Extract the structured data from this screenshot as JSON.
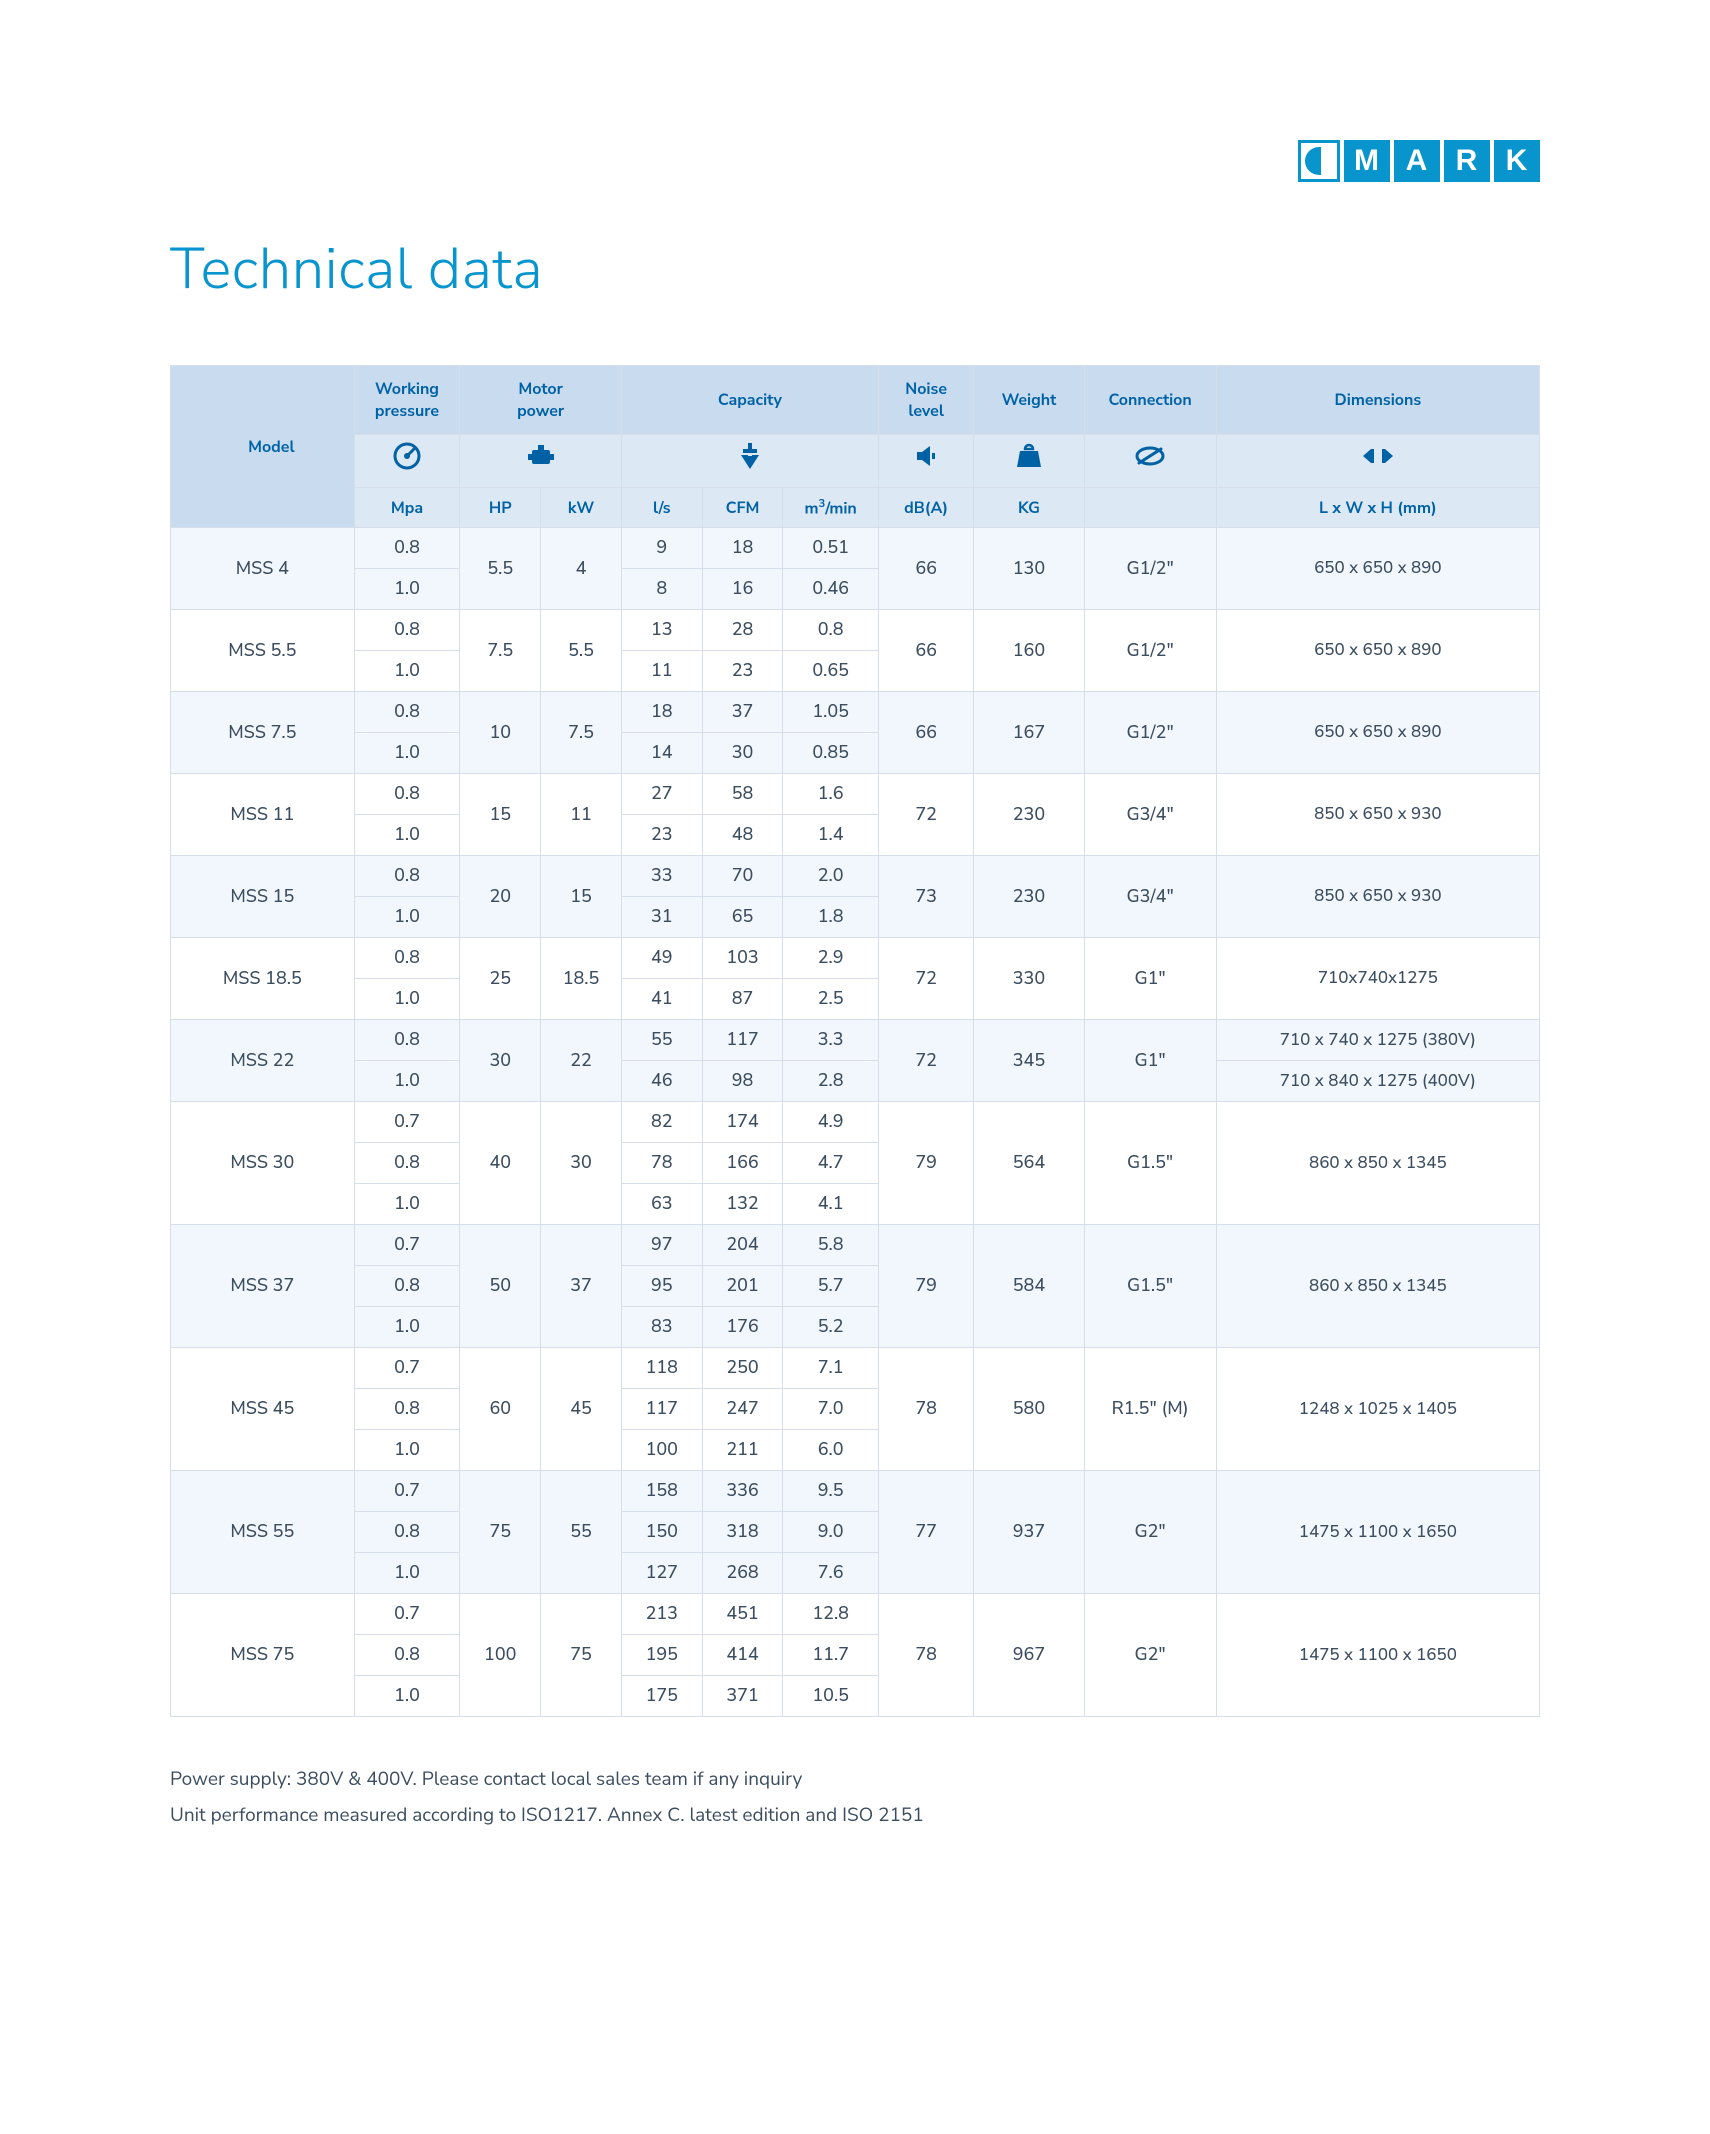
{
  "logo_letters": [
    "M",
    "A",
    "R",
    "K"
  ],
  "title": "Technical data",
  "colgroup": [
    "c-model",
    "c-press",
    "c-hp",
    "c-kw",
    "c-ls",
    "c-cfm",
    "c-m3",
    "c-db",
    "c-kg",
    "c-conn",
    "c-dim"
  ],
  "header_groups": [
    {
      "label": "Model",
      "icon": "",
      "colspan": 1,
      "rowspan_all": true
    },
    {
      "label": "Working pressure",
      "icon": "gauge",
      "colspan": 1
    },
    {
      "label": "Motor power",
      "icon": "engine",
      "colspan": 2
    },
    {
      "label": "Capacity",
      "icon": "flow",
      "colspan": 3
    },
    {
      "label": "Noise level",
      "icon": "noise",
      "colspan": 1
    },
    {
      "label": "Weight",
      "icon": "weight",
      "colspan": 1
    },
    {
      "label": "Connection",
      "icon": "coupling",
      "colspan": 1
    },
    {
      "label": "Dimensions",
      "icon": "dimensions",
      "colspan": 1
    }
  ],
  "unit_row": [
    "Mpa",
    "HP",
    "kW",
    "l/s",
    "CFM",
    "m³/min",
    "dB(A)",
    "KG",
    "",
    "L x W x H (mm)"
  ],
  "models": [
    {
      "name": "MSS 4",
      "hp": "5.5",
      "kw": "4",
      "noise": "66",
      "weight": "130",
      "conn": "G1/2\"",
      "dim": [
        "650 x 650 x 890"
      ],
      "lines": [
        {
          "p": "0.8",
          "ls": "9",
          "cfm": "18",
          "m3": "0.51"
        },
        {
          "p": "1.0",
          "ls": "8",
          "cfm": "16",
          "m3": "0.46"
        }
      ]
    },
    {
      "name": "MSS 5.5",
      "hp": "7.5",
      "kw": "5.5",
      "noise": "66",
      "weight": "160",
      "conn": "G1/2\"",
      "dim": [
        "650 x 650 x 890"
      ],
      "lines": [
        {
          "p": "0.8",
          "ls": "13",
          "cfm": "28",
          "m3": "0.8"
        },
        {
          "p": "1.0",
          "ls": "11",
          "cfm": "23",
          "m3": "0.65"
        }
      ]
    },
    {
      "name": "MSS 7.5",
      "hp": "10",
      "kw": "7.5",
      "noise": "66",
      "weight": "167",
      "conn": "G1/2\"",
      "dim": [
        "650 x 650 x 890"
      ],
      "lines": [
        {
          "p": "0.8",
          "ls": "18",
          "cfm": "37",
          "m3": "1.05"
        },
        {
          "p": "1.0",
          "ls": "14",
          "cfm": "30",
          "m3": "0.85"
        }
      ]
    },
    {
      "name": "MSS 11",
      "hp": "15",
      "kw": "11",
      "noise": "72",
      "weight": "230",
      "conn": "G3/4\"",
      "dim": [
        "850 x 650 x 930"
      ],
      "lines": [
        {
          "p": "0.8",
          "ls": "27",
          "cfm": "58",
          "m3": "1.6"
        },
        {
          "p": "1.0",
          "ls": "23",
          "cfm": "48",
          "m3": "1.4"
        }
      ]
    },
    {
      "name": "MSS 15",
      "hp": "20",
      "kw": "15",
      "noise": "73",
      "weight": "230",
      "conn": "G3/4\"",
      "dim": [
        "850 x 650 x 930"
      ],
      "lines": [
        {
          "p": "0.8",
          "ls": "33",
          "cfm": "70",
          "m3": "2.0"
        },
        {
          "p": "1.0",
          "ls": "31",
          "cfm": "65",
          "m3": "1.8"
        }
      ]
    },
    {
      "name": "MSS 18.5",
      "hp": "25",
      "kw": "18.5",
      "noise": "72",
      "weight": "330",
      "conn": "G1\"",
      "dim": [
        "710x740x1275"
      ],
      "lines": [
        {
          "p": "0.8",
          "ls": "49",
          "cfm": "103",
          "m3": "2.9"
        },
        {
          "p": "1.0",
          "ls": "41",
          "cfm": "87",
          "m3": "2.5"
        }
      ]
    },
    {
      "name": "MSS 22",
      "hp": "30",
      "kw": "22",
      "noise": "72",
      "weight": "345",
      "conn": "G1\"",
      "dim": [
        "710 x 740 x 1275 (380V)",
        "710 x 840 x 1275 (400V)"
      ],
      "dim_per_line": true,
      "lines": [
        {
          "p": "0.8",
          "ls": "55",
          "cfm": "117",
          "m3": "3.3"
        },
        {
          "p": "1.0",
          "ls": "46",
          "cfm": "98",
          "m3": "2.8"
        }
      ]
    },
    {
      "name": "MSS 30",
      "hp": "40",
      "kw": "30",
      "noise": "79",
      "weight": "564",
      "conn": "G1.5\"",
      "dim": [
        "860 x 850 x 1345"
      ],
      "lines": [
        {
          "p": "0.7",
          "ls": "82",
          "cfm": "174",
          "m3": "4.9"
        },
        {
          "p": "0.8",
          "ls": "78",
          "cfm": "166",
          "m3": "4.7"
        },
        {
          "p": "1.0",
          "ls": "63",
          "cfm": "132",
          "m3": "4.1"
        }
      ]
    },
    {
      "name": "MSS 37",
      "hp": "50",
      "kw": "37",
      "noise": "79",
      "weight": "584",
      "conn": "G1.5\"",
      "dim": [
        "860 x 850 x 1345"
      ],
      "lines": [
        {
          "p": "0.7",
          "ls": "97",
          "cfm": "204",
          "m3": "5.8"
        },
        {
          "p": "0.8",
          "ls": "95",
          "cfm": "201",
          "m3": "5.7"
        },
        {
          "p": "1.0",
          "ls": "83",
          "cfm": "176",
          "m3": "5.2"
        }
      ]
    },
    {
      "name": "MSS 45",
      "hp": "60",
      "kw": "45",
      "noise": "78",
      "weight": "580",
      "conn": "R1.5\" (M)",
      "dim": [
        "1248 x 1025 x 1405"
      ],
      "lines": [
        {
          "p": "0.7",
          "ls": "118",
          "cfm": "250",
          "m3": "7.1"
        },
        {
          "p": "0.8",
          "ls": "117",
          "cfm": "247",
          "m3": "7.0"
        },
        {
          "p": "1.0",
          "ls": "100",
          "cfm": "211",
          "m3": "6.0"
        }
      ]
    },
    {
      "name": "MSS 55",
      "hp": "75",
      "kw": "55",
      "noise": "77",
      "weight": "937",
      "conn": "G2\"",
      "dim": [
        "1475 x 1100 x 1650"
      ],
      "lines": [
        {
          "p": "0.7",
          "ls": "158",
          "cfm": "336",
          "m3": "9.5"
        },
        {
          "p": "0.8",
          "ls": "150",
          "cfm": "318",
          "m3": "9.0"
        },
        {
          "p": "1.0",
          "ls": "127",
          "cfm": "268",
          "m3": "7.6"
        }
      ]
    },
    {
      "name": "MSS 75",
      "hp": "100",
      "kw": "75",
      "noise": "78",
      "weight": "967",
      "conn": "G2\"",
      "dim": [
        "1475 x 1100 x 1650"
      ],
      "lines": [
        {
          "p": "0.7",
          "ls": "213",
          "cfm": "451",
          "m3": "12.8"
        },
        {
          "p": "0.8",
          "ls": "195",
          "cfm": "414",
          "m3": "11.7"
        },
        {
          "p": "1.0",
          "ls": "175",
          "cfm": "371",
          "m3": "10.5"
        }
      ]
    }
  ],
  "footnotes": [
    "Power supply: 380V & 400V. Please contact local sales team if any inquiry",
    "Unit performance measured according to ISO1217. Annex C. latest edition and ISO 2151"
  ],
  "colors": {
    "brand": "#0895ce",
    "header_text": "#0062a5",
    "col_header_bg": "#c9dbee",
    "icon_unit_bg": "#dce8f4",
    "zebra_a": "#f2f7fd",
    "zebra_b": "#ffffff",
    "border": "#d6deea",
    "text": "#3b4d5f"
  }
}
